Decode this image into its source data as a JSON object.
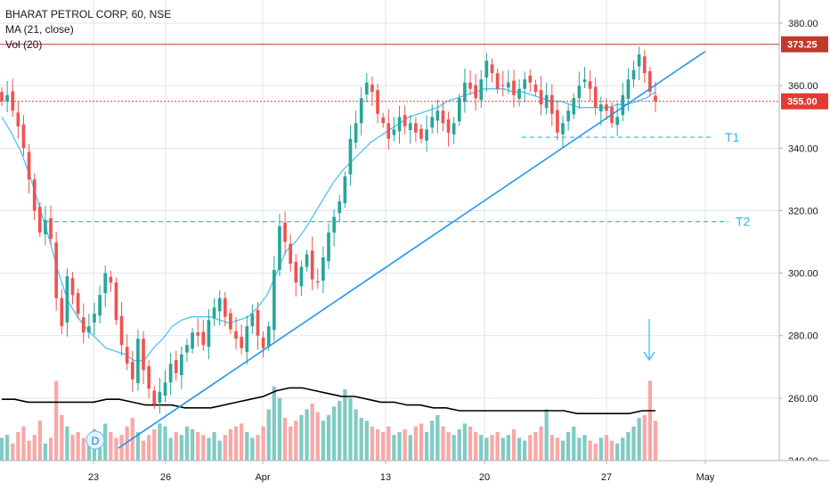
{
  "chart_data": {
    "type": "candlestick",
    "title": "BHARAT PETROL CORP, 60, NSE",
    "indicators": [
      "MA (21, close)",
      "Vol (20)"
    ],
    "y_axis": {
      "ylim": [
        240,
        386
      ],
      "ticks": [
        240,
        260,
        280,
        300,
        320,
        340,
        360,
        380
      ],
      "tick_labels": [
        "240.00",
        "260.00",
        "280.00",
        "300.00",
        "320.00",
        "340.00",
        "360.00",
        "380.00"
      ],
      "side": "right"
    },
    "x_axis": {
      "tick_labels": [
        "23",
        "26",
        "Apr",
        "13",
        "20",
        "27",
        "May"
      ]
    },
    "price_levels": [
      {
        "value": 373.25,
        "label": "373.25",
        "style": "solid",
        "color": "#c0392b"
      },
      {
        "value": 355.0,
        "label": "355.00",
        "style": "dotted",
        "color": "#e53935"
      }
    ],
    "targets": [
      {
        "label": "T1",
        "value": 343.5
      },
      {
        "label": "T2",
        "value": 316.5
      }
    ],
    "trendline": {
      "from": [
        24,
        244
      ],
      "to": [
        406,
        371
      ]
    },
    "closes": [
      355,
      357,
      352,
      347,
      340,
      330,
      320,
      313,
      317,
      311,
      292,
      283,
      299,
      293,
      287,
      281,
      283,
      287,
      293,
      300,
      297,
      285,
      277,
      271,
      266,
      279,
      269,
      263,
      258,
      262,
      265,
      271,
      268,
      274,
      277,
      281,
      280,
      277,
      285,
      289,
      292,
      286,
      282,
      279,
      276,
      283,
      287,
      280,
      276,
      283,
      301,
      315,
      310,
      303,
      297,
      302,
      306,
      298,
      297,
      305,
      313,
      318,
      323,
      331,
      343,
      348,
      356,
      361,
      358,
      351,
      348,
      343,
      346,
      350,
      347,
      348,
      345,
      343,
      346,
      350,
      352,
      348,
      345,
      348,
      356,
      361,
      359,
      356,
      362,
      368,
      364,
      359,
      360,
      361,
      357,
      359,
      362,
      361,
      358,
      354,
      357,
      351,
      345,
      348,
      352,
      356,
      360,
      362,
      359,
      353,
      354,
      352,
      348,
      350,
      357,
      362,
      365,
      370,
      364,
      358,
      355
    ],
    "ma21": [
      350,
      345,
      339,
      331,
      321,
      311,
      300,
      291,
      286,
      282,
      279,
      276,
      275,
      274,
      272,
      272,
      276,
      279,
      283,
      285,
      286,
      286,
      286,
      285,
      284,
      285,
      286,
      289,
      293,
      300,
      307,
      310,
      314,
      319,
      324,
      329,
      333,
      336,
      339,
      342,
      344,
      346,
      348,
      350,
      351,
      352,
      353,
      355,
      356,
      357,
      358,
      359,
      359,
      359,
      358,
      358,
      357,
      356,
      355,
      355,
      354,
      353,
      353,
      353,
      353,
      354,
      354,
      355,
      356,
      358
    ],
    "volume_bar_values": [
      8,
      9,
      6,
      10,
      12,
      7,
      9,
      14,
      6,
      8,
      28,
      16,
      12,
      9,
      10,
      8,
      7,
      11,
      9,
      13,
      10,
      8,
      9,
      12,
      15,
      10,
      7,
      9,
      11,
      13,
      12,
      8,
      10,
      9,
      12,
      11,
      10,
      9,
      8,
      10,
      7,
      9,
      11,
      12,
      13,
      10,
      8,
      9,
      12,
      18,
      26,
      22,
      15,
      12,
      14,
      16,
      18,
      20,
      17,
      14,
      16,
      19,
      21,
      25,
      22,
      18,
      15,
      14,
      12,
      11,
      10,
      12,
      9,
      10,
      11,
      9,
      12,
      13,
      10,
      14,
      16,
      12,
      10,
      9,
      11,
      13,
      12,
      10,
      9,
      8,
      9,
      10,
      8,
      9,
      11,
      8,
      7,
      9,
      10,
      12,
      18,
      9,
      8,
      7,
      10,
      12,
      8,
      9,
      7,
      6,
      8,
      9,
      7,
      6,
      8,
      10,
      12,
      15,
      16,
      28,
      14
    ],
    "volume_ma": [
      9,
      9,
      8,
      8,
      8,
      8,
      8,
      8,
      9,
      9,
      8,
      7,
      7,
      7,
      6,
      6,
      6,
      7,
      8,
      9,
      10,
      12,
      13,
      13,
      12,
      11,
      10,
      10,
      9,
      8,
      8,
      7,
      7,
      6,
      6,
      5,
      5,
      5,
      5,
      5,
      5,
      5,
      5,
      5,
      4,
      4,
      4,
      4,
      4,
      5,
      5
    ]
  },
  "annotations": {
    "event_marker": "D"
  },
  "colors": {
    "up": "#26a69a",
    "down": "#ef5350",
    "vol_up": "#80cbc4",
    "vol_down": "#f7a9a7",
    "ma": "#4fc3f7",
    "trend": "#2196f3",
    "target_line": "#29b6f6",
    "grid": "#e0e3eb",
    "axis_text": "#131722",
    "volume_ma": "#000000"
  }
}
